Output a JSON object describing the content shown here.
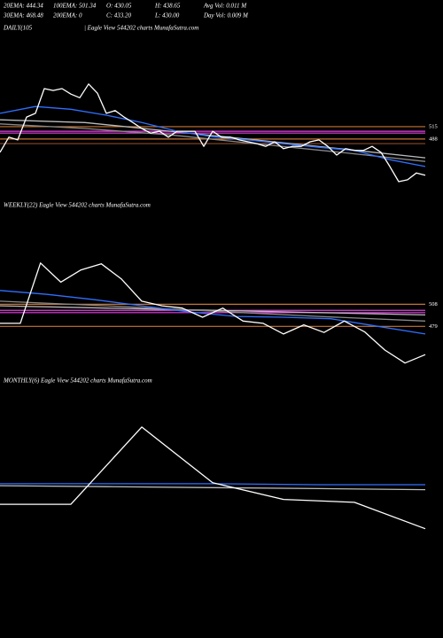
{
  "header": {
    "row1": [
      "20EMA: 444.34",
      "100EMA: 501.34",
      "O: 430.05",
      "H: 438.65",
      "Avg Vol: 0.011 M"
    ],
    "row2": [
      "30EMA: 468.48",
      "200EMA: 0",
      "C: 433.20",
      "L: 430.00",
      "Day Vol: 0.009 M"
    ]
  },
  "chart_data": [
    {
      "type": "line",
      "title": "DAILY(105",
      "subtitle": "| Eagle  View  544202  charts MunafaSutra.com",
      "ylim": [
        366,
        714
      ],
      "levels": [
        {
          "value": 515,
          "color": "#c87533",
          "labeled": true
        },
        {
          "value": 505,
          "color": "#e040e0"
        },
        {
          "value": 501,
          "color": "#e040e0"
        },
        {
          "value": 488,
          "color": "#c87533",
          "labeled": true
        },
        {
          "value": 478,
          "color": "#8b4a2b"
        }
      ],
      "series": [
        {
          "color": "#bbbbbb",
          "values": [
            530,
            524,
            505,
            486,
            467,
            447
          ]
        },
        {
          "color": "#888888",
          "values": [
            521,
            511,
            497,
            478,
            459,
            439
          ]
        },
        {
          "color": "#2f6fff",
          "values": [
            544,
            559,
            553,
            540,
            524,
            505,
            493,
            486,
            478,
            470,
            463,
            443,
            428
          ]
        },
        {
          "color": "#ffffff",
          "values": [
            459,
            492,
            486,
            536,
            544,
            598,
            594,
            598,
            586,
            578,
            608,
            588,
            544,
            550,
            536,
            524,
            511,
            501,
            505,
            492,
            505,
            505,
            505,
            472,
            505,
            492,
            492,
            486,
            482,
            478,
            472,
            482,
            467,
            472,
            472,
            482,
            486,
            472,
            453,
            467,
            463,
            463,
            472,
            459,
            428,
            395,
            399,
            414,
            409
          ]
        }
      ]
    },
    {
      "type": "line",
      "title": "WEEKLY(22) Eagle  View  544202  charts MunafaSutra.com",
      "ylim": [
        419,
        628
      ],
      "levels": [
        {
          "value": 508,
          "color": "#c87533",
          "labeled": true
        },
        {
          "value": 500,
          "color": "#e040e0"
        },
        {
          "value": 497,
          "color": "#e040e0"
        },
        {
          "value": 479,
          "color": "#c87533",
          "labeled": true
        }
      ],
      "series": [
        {
          "color": "#bbbbbb",
          "values": [
            506,
            503,
            500,
            497,
            494
          ]
        },
        {
          "color": "#888888",
          "values": [
            512,
            506,
            499,
            492,
            486
          ]
        },
        {
          "color": "#2f6fff",
          "values": [
            526,
            521,
            514,
            506,
            498,
            492,
            491,
            489,
            479,
            469
          ]
        },
        {
          "color": "#ffffff",
          "values": [
            483,
            483,
            562,
            537,
            553,
            561,
            541,
            512,
            506,
            503,
            491,
            503,
            486,
            483,
            469,
            481,
            471,
            486,
            472,
            448,
            431,
            442
          ]
        }
      ]
    },
    {
      "type": "line",
      "title": "MONTHLY(6) Eagle  View  544202  charts MunafaSutra.com",
      "ylim": [
        455,
        600
      ],
      "levels": [],
      "series": [
        {
          "color": "#bbbbbb",
          "values": [
            502,
            501,
            500,
            499,
            498
          ]
        },
        {
          "color": "#2f6fff",
          "values": [
            504,
            504,
            504,
            503,
            503
          ]
        },
        {
          "color": "#ffffff",
          "values": [
            483,
            483,
            562,
            505,
            488,
            485,
            458
          ]
        }
      ]
    }
  ]
}
